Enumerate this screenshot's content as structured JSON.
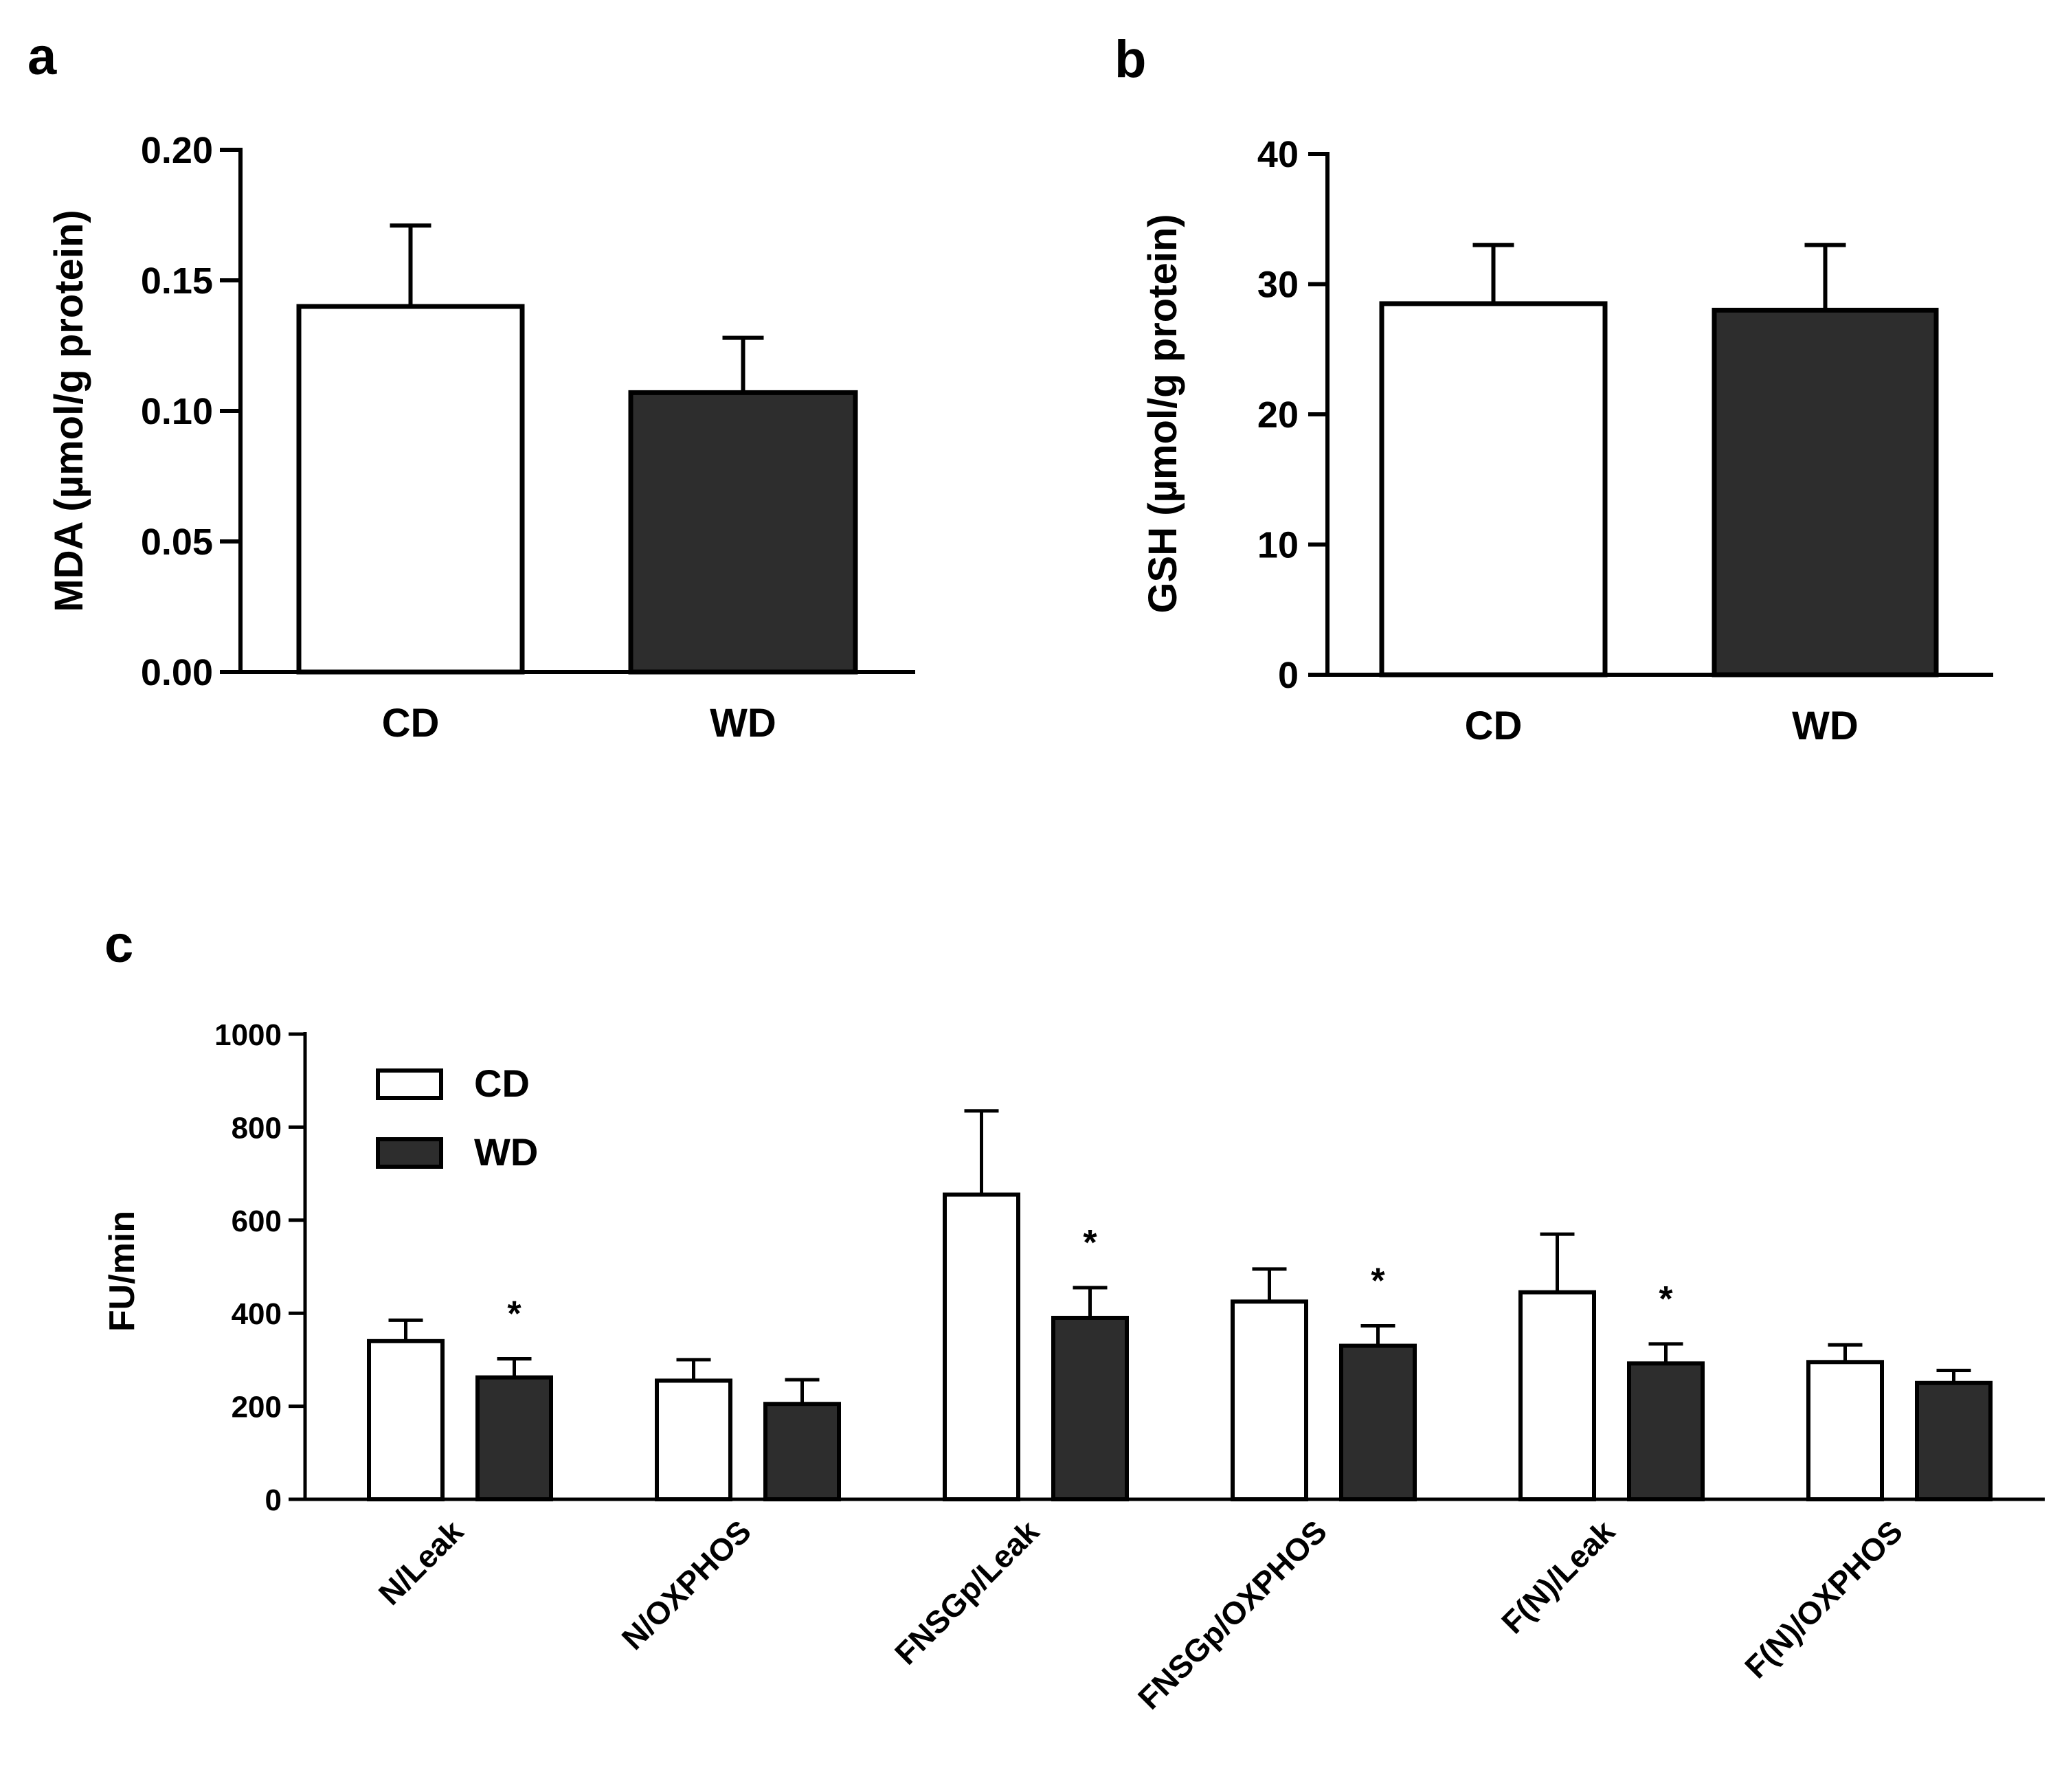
{
  "colors": {
    "cd": "#ffffff",
    "wd": "#2d2d2d",
    "stroke": "#000000"
  },
  "chart_data": [
    {
      "panel": "a",
      "type": "bar",
      "title": "",
      "categories": [
        "CD",
        "WD"
      ],
      "values": [
        0.14,
        0.107
      ],
      "errors": [
        0.031,
        0.021
      ],
      "xlabel": "",
      "ylabel": "MDA (µmol/g protein)",
      "ylim": [
        0,
        0.2
      ],
      "ticks": [
        0,
        0.05,
        0.1,
        0.15,
        0.2
      ],
      "tick_labels": [
        "0.00",
        "0.05",
        "0.10",
        "0.15",
        "0.20"
      ],
      "grid": false
    },
    {
      "panel": "b",
      "type": "bar",
      "title": "",
      "categories": [
        "CD",
        "WD"
      ],
      "values": [
        28.5,
        28
      ],
      "errors": [
        4.5,
        5
      ],
      "xlabel": "",
      "ylabel": "GSH (µmol/g protein)",
      "ylim": [
        0,
        40
      ],
      "ticks": [
        0,
        10,
        20,
        30,
        40
      ],
      "tick_labels": [
        "0",
        "10",
        "20",
        "30",
        "40"
      ],
      "grid": false
    },
    {
      "panel": "c",
      "type": "bar",
      "title": "",
      "categories": [
        "N/Leak",
        "N/OXPHOS",
        "FNSGp/Leak",
        "FNSGp/OXPHOS",
        "F(N)/Leak",
        "F(N)/OXPHOS"
      ],
      "series": [
        {
          "name": "CD",
          "values": [
            340,
            255,
            655,
            425,
            445,
            295
          ],
          "errors": [
            45,
            45,
            180,
            70,
            125,
            37
          ]
        },
        {
          "name": "WD",
          "values": [
            262,
            205,
            390,
            330,
            292,
            250
          ],
          "errors": [
            40,
            52,
            65,
            43,
            42,
            27
          ]
        }
      ],
      "significance": [
        "*",
        "",
        "*",
        "*",
        "*",
        ""
      ],
      "xlabel": "",
      "ylabel": "FU/min",
      "ylim": [
        0,
        1000
      ],
      "ticks": [
        0,
        200,
        400,
        600,
        800,
        1000
      ],
      "tick_labels": [
        "0",
        "200",
        "400",
        "600",
        "800",
        "1000"
      ],
      "legend_position": "top-left",
      "grid": false
    }
  ]
}
